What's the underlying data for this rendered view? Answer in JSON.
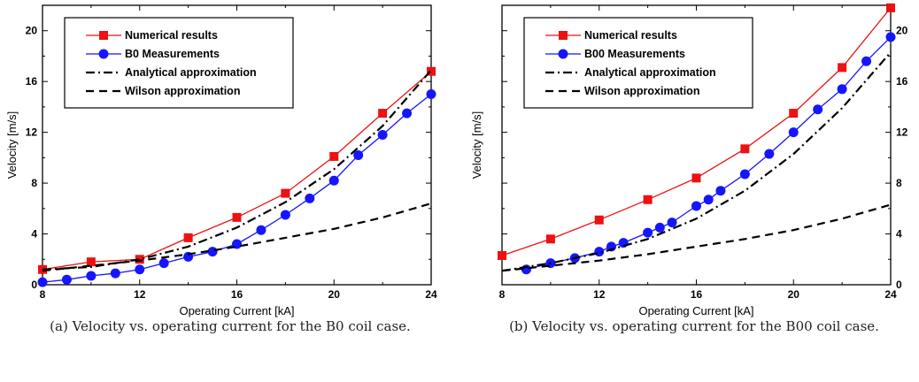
{
  "chart_data": [
    {
      "type": "line",
      "xlabel": "Operating Current [kA]",
      "ylabel": "Velocity [m/s]",
      "xlim": [
        8,
        24
      ],
      "ylim": [
        0,
        22
      ],
      "xticks": [
        8,
        12,
        16,
        20,
        24
      ],
      "yticks": [
        0,
        4,
        8,
        12,
        16,
        20
      ],
      "ytick_side": "left",
      "legend_position": "top-left",
      "caption": "(a) Velocity vs. operating current for the B0 coil case.",
      "series": [
        {
          "name": "Numerical results",
          "style": "red-square-line",
          "color": "#ee1111",
          "x": [
            8,
            10,
            12,
            14,
            16,
            18,
            20,
            22,
            24
          ],
          "y": [
            1.2,
            1.8,
            2.0,
            3.7,
            5.3,
            7.2,
            10.1,
            13.5,
            16.8
          ]
        },
        {
          "name": "B0 Measurements",
          "style": "blue-circle-line",
          "color": "#1515ff",
          "x": [
            8,
            9,
            10,
            11,
            12,
            13,
            14,
            15,
            16,
            17,
            18,
            19,
            20,
            21,
            22,
            23,
            24
          ],
          "y": [
            0.2,
            0.4,
            0.7,
            0.9,
            1.2,
            1.7,
            2.2,
            2.6,
            3.2,
            4.3,
            5.5,
            6.8,
            8.2,
            10.2,
            11.8,
            13.5,
            15.0
          ]
        },
        {
          "name": "Analytical approximation",
          "style": "dash-dot",
          "color": "#000000",
          "x": [
            8,
            10,
            12,
            14,
            16,
            18,
            20,
            22,
            24
          ],
          "y": [
            1.2,
            1.4,
            2.0,
            3.0,
            4.5,
            6.5,
            9.1,
            12.5,
            16.9
          ]
        },
        {
          "name": "Wilson approximation",
          "style": "dashed",
          "color": "#000000",
          "x": [
            8,
            10,
            12,
            14,
            16,
            18,
            20,
            22,
            24
          ],
          "y": [
            1.1,
            1.5,
            1.9,
            2.4,
            3.0,
            3.7,
            4.4,
            5.3,
            6.4
          ]
        }
      ]
    },
    {
      "type": "line",
      "xlabel": "Operating Current [kA]",
      "ylabel": "Velocity [m/s]",
      "xlim": [
        8,
        24
      ],
      "ylim": [
        0,
        22
      ],
      "xticks": [
        8,
        12,
        16,
        20,
        24
      ],
      "yticks": [
        0,
        4,
        8,
        12,
        16,
        20
      ],
      "ytick_side": "right",
      "legend_position": "top-left",
      "caption": "(b) Velocity vs. operating current for the B00 coil case.",
      "series": [
        {
          "name": "Numerical results",
          "style": "red-square-line",
          "color": "#ee1111",
          "x": [
            8,
            10,
            12,
            14,
            16,
            18,
            20,
            22,
            24
          ],
          "y": [
            2.3,
            3.6,
            5.1,
            6.7,
            8.4,
            10.7,
            13.5,
            17.1,
            21.8
          ]
        },
        {
          "name": "B00 Measurements",
          "style": "blue-circle-line",
          "color": "#1515ff",
          "x": [
            9,
            10,
            11,
            12,
            12.5,
            13,
            14,
            14.5,
            15,
            16,
            16.5,
            17,
            18,
            19,
            20,
            21,
            22,
            23,
            24
          ],
          "y": [
            1.2,
            1.7,
            2.1,
            2.6,
            3.0,
            3.3,
            4.1,
            4.5,
            4.9,
            6.2,
            6.7,
            7.4,
            8.7,
            10.3,
            12.0,
            13.8,
            15.4,
            17.6,
            19.5
          ]
        },
        {
          "name": "Analytical approximation",
          "style": "dash-dot",
          "color": "#000000",
          "x": [
            8,
            10,
            12,
            14,
            16,
            18,
            20,
            22,
            24
          ],
          "y": [
            1.1,
            1.7,
            2.5,
            3.6,
            5.2,
            7.4,
            10.3,
            13.9,
            18.3
          ]
        },
        {
          "name": "Wilson approximation",
          "style": "dashed",
          "color": "#000000",
          "x": [
            8,
            10,
            12,
            14,
            16,
            18,
            20,
            22,
            24
          ],
          "y": [
            1.1,
            1.5,
            1.9,
            2.4,
            3.0,
            3.6,
            4.3,
            5.2,
            6.3
          ]
        }
      ]
    }
  ]
}
